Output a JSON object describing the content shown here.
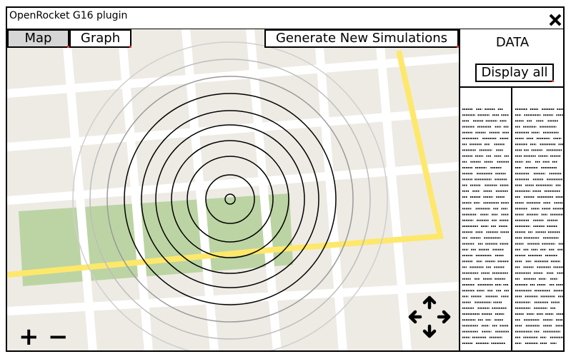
{
  "window": {
    "title": "OpenRocket G16 plugin"
  },
  "toolbar": {
    "map_label": "Map",
    "graph_label": "Graph",
    "generate_label": "Generate New Simulations"
  },
  "data_panel": {
    "title": "DATA",
    "display_all_label": "Display all"
  },
  "map_controls": {
    "zoom_in": "+",
    "zoom_out": "−"
  },
  "icons": {
    "close": "close-icon",
    "pan": "pan-arrows-icon"
  },
  "colors": {
    "map_background": "#eeebe5",
    "road": "#ffffff",
    "highway": "#fde86b",
    "park": "#bcd4a4",
    "active_tab": "#d6d6d6"
  }
}
